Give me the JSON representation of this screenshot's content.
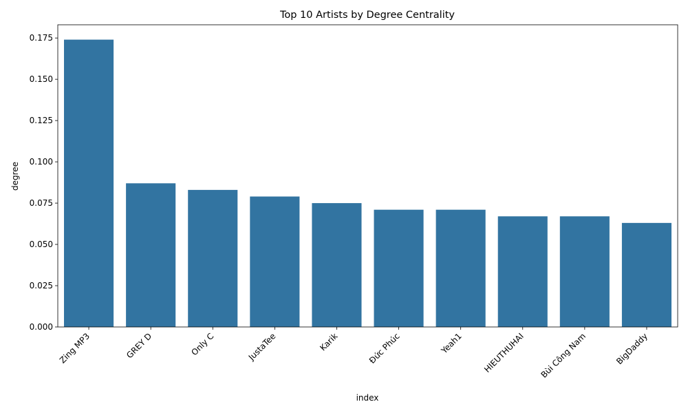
{
  "chart_data": {
    "type": "bar",
    "title": "Top 10 Artists by Degree Centrality",
    "xlabel": "index",
    "ylabel": "degree",
    "categories": [
      "Zing MP3",
      "GREY D",
      "Only C",
      "JustaTee",
      "Karik",
      "Đức Phúc",
      "Yeah1",
      "HIEUTHUHAI",
      "Bùi Công Nam",
      "BigDaddy"
    ],
    "values": [
      0.174,
      0.087,
      0.083,
      0.079,
      0.075,
      0.071,
      0.071,
      0.067,
      0.067,
      0.063
    ],
    "ylim": [
      0,
      0.183
    ],
    "yticks": [
      "0.000",
      "0.025",
      "0.050",
      "0.075",
      "0.100",
      "0.125",
      "0.150",
      "0.175"
    ],
    "grid": false,
    "bar_color": "#3274a1"
  }
}
